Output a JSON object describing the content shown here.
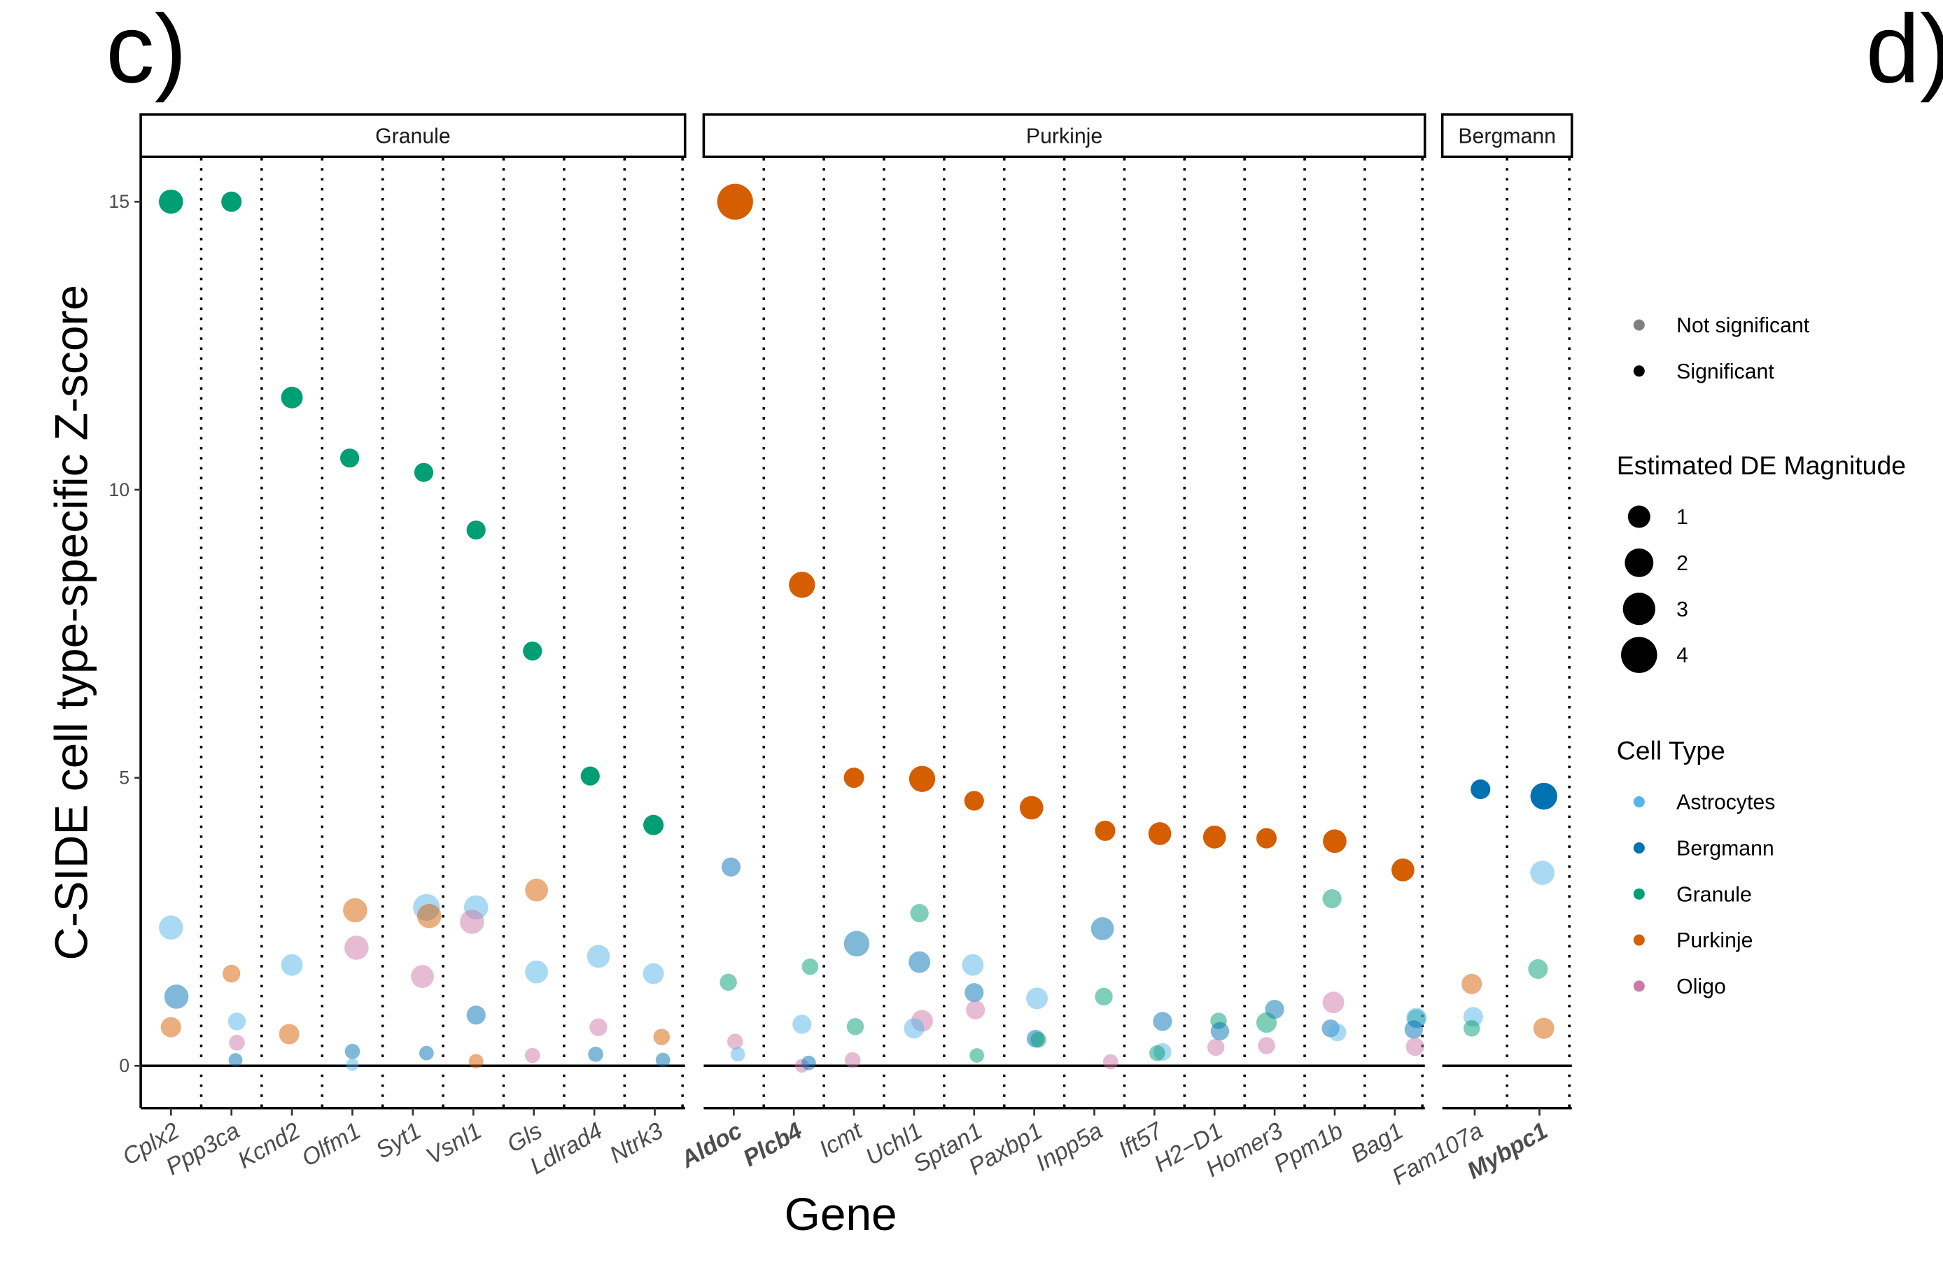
{
  "figure": {
    "panel_labels": [
      "c)",
      "d)"
    ]
  },
  "chart_data": {
    "type": "scatter",
    "title": "",
    "xlabel": "Gene",
    "ylabel": "C-SIDE cell type-specific Z-score",
    "ylim": [
      -0.75,
      15.75
    ],
    "yticks": [
      0,
      5,
      10,
      15
    ],
    "grid": "vertical dotted separators between genes; horizontal line at y=0",
    "facets": [
      {
        "name": "Granule",
        "genes": [
          "Cplx2",
          "Ppp3ca",
          "Kcnd2",
          "Olfm1",
          "Syt1",
          "Vsnl1",
          "Gls",
          "Ldlrad4",
          "Ntrk3"
        ],
        "bold_genes": []
      },
      {
        "name": "Purkinje",
        "genes": [
          "Aldoc",
          "Plcb4",
          "Icmt",
          "Uchl1",
          "Sptan1",
          "Paxbp1",
          "Inpp5a",
          "Ift57",
          "H2−D1",
          "Homer3",
          "Ppm1b",
          "Bag1"
        ],
        "bold_genes": [
          "Aldoc",
          "Plcb4"
        ]
      },
      {
        "name": "Bergmann",
        "genes": [
          "Fam107a",
          "Mybpc1"
        ],
        "bold_genes": [
          "Mybpc1"
        ]
      }
    ],
    "cell_types": [
      {
        "name": "Astrocytes",
        "color": "#56B4E9"
      },
      {
        "name": "Bergmann",
        "color": "#0072B2"
      },
      {
        "name": "Granule",
        "color": "#009E73"
      },
      {
        "name": "Purkinje",
        "color": "#D55E00"
      },
      {
        "name": "Oligo",
        "color": "#CC79A7"
      }
    ],
    "legend": {
      "position": "right",
      "significance": {
        "title": "",
        "items": [
          "Not significant",
          "Significant"
        ],
        "colors": [
          "#808080",
          "#000000"
        ]
      },
      "magnitude": {
        "title": "Estimated DE Magnitude",
        "values": [
          1,
          2,
          3,
          4
        ]
      },
      "cell_type": {
        "title": "Cell Type",
        "items": [
          "Astrocytes",
          "Bergmann",
          "Granule",
          "Purkinje",
          "Oligo"
        ]
      }
    },
    "points": [
      {
        "gene": "Cplx2",
        "cell": "Granule",
        "z": 15.0,
        "mag": 2.2,
        "sig": true,
        "offset": 0
      },
      {
        "gene": "Cplx2",
        "cell": "Astrocytes",
        "z": 2.4,
        "mag": 2.2,
        "sig": false,
        "offset": 0
      },
      {
        "gene": "Cplx2",
        "cell": "Bergmann",
        "z": 1.2,
        "mag": 2.2,
        "sig": false,
        "offset": 0.2
      },
      {
        "gene": "Cplx2",
        "cell": "Purkinje",
        "z": 0.67,
        "mag": 1.6,
        "sig": false,
        "offset": 0
      },
      {
        "gene": "Ppp3ca",
        "cell": "Granule",
        "z": 15.0,
        "mag": 1.6,
        "sig": true,
        "offset": 0
      },
      {
        "gene": "Ppp3ca",
        "cell": "Purkinje",
        "z": 1.6,
        "mag": 1.2,
        "sig": false,
        "offset": 0
      },
      {
        "gene": "Ppp3ca",
        "cell": "Astrocytes",
        "z": 0.77,
        "mag": 1.2,
        "sig": false,
        "offset": 0.2
      },
      {
        "gene": "Ppp3ca",
        "cell": "Oligo",
        "z": 0.4,
        "mag": 0.9,
        "sig": false,
        "offset": 0.2
      },
      {
        "gene": "Ppp3ca",
        "cell": "Bergmann",
        "z": 0.1,
        "mag": 0.6,
        "sig": false,
        "offset": 0.15
      },
      {
        "gene": "Kcnd2",
        "cell": "Granule",
        "z": 11.6,
        "mag": 1.8,
        "sig": true,
        "offset": 0
      },
      {
        "gene": "Kcnd2",
        "cell": "Astrocytes",
        "z": 1.75,
        "mag": 1.8,
        "sig": false,
        "offset": 0
      },
      {
        "gene": "Kcnd2",
        "cell": "Purkinje",
        "z": 0.55,
        "mag": 1.6,
        "sig": false,
        "offset": -0.1
      },
      {
        "gene": "Olfm1",
        "cell": "Granule",
        "z": 10.55,
        "mag": 1.4,
        "sig": true,
        "offset": -0.1
      },
      {
        "gene": "Olfm1",
        "cell": "Purkinje",
        "z": 2.7,
        "mag": 2.2,
        "sig": false,
        "offset": 0.1
      },
      {
        "gene": "Olfm1",
        "cell": "Oligo",
        "z": 2.05,
        "mag": 2.2,
        "sig": false,
        "offset": 0.15
      },
      {
        "gene": "Olfm1",
        "cell": "Bergmann",
        "z": 0.25,
        "mag": 0.8,
        "sig": false,
        "offset": 0
      },
      {
        "gene": "Olfm1",
        "cell": "Astrocytes",
        "z": 0.02,
        "mag": 0.4,
        "sig": false,
        "offset": 0
      },
      {
        "gene": "Syt1",
        "cell": "Granule",
        "z": 10.3,
        "mag": 1.4,
        "sig": true,
        "offset": 0.4
      },
      {
        "gene": "Syt1",
        "cell": "Astrocytes",
        "z": 2.75,
        "mag": 2.6,
        "sig": false,
        "offset": 0.5
      },
      {
        "gene": "Syt1",
        "cell": "Purkinje",
        "z": 2.6,
        "mag": 2.2,
        "sig": false,
        "offset": 0.6
      },
      {
        "gene": "Syt1",
        "cell": "Oligo",
        "z": 1.55,
        "mag": 2.0,
        "sig": false,
        "offset": 0.35
      },
      {
        "gene": "Syt1",
        "cell": "Bergmann",
        "z": 0.22,
        "mag": 0.7,
        "sig": false,
        "offset": 0.5
      },
      {
        "gene": "Vsnl1",
        "cell": "Granule",
        "z": 9.3,
        "mag": 1.4,
        "sig": true,
        "offset": 0.1
      },
      {
        "gene": "Vsnl1",
        "cell": "Astrocytes",
        "z": 2.75,
        "mag": 2.2,
        "sig": false,
        "offset": 0.1
      },
      {
        "gene": "Vsnl1",
        "cell": "Oligo",
        "z": 2.5,
        "mag": 2.2,
        "sig": false,
        "offset": -0.05
      },
      {
        "gene": "Vsnl1",
        "cell": "Bergmann",
        "z": 0.88,
        "mag": 1.4,
        "sig": false,
        "offset": 0.1
      },
      {
        "gene": "Vsnl1",
        "cell": "Purkinje",
        "z": 0.08,
        "mag": 0.7,
        "sig": false,
        "offset": 0.1
      },
      {
        "gene": "Gls",
        "cell": "Granule",
        "z": 7.2,
        "mag": 1.4,
        "sig": true,
        "offset": -0.05
      },
      {
        "gene": "Gls",
        "cell": "Purkinje",
        "z": 3.05,
        "mag": 2.0,
        "sig": false,
        "offset": 0.1
      },
      {
        "gene": "Gls",
        "cell": "Astrocytes",
        "z": 1.63,
        "mag": 2.0,
        "sig": false,
        "offset": 0.1
      },
      {
        "gene": "Gls",
        "cell": "Oligo",
        "z": 0.18,
        "mag": 0.8,
        "sig": false,
        "offset": -0.05
      },
      {
        "gene": "Ldlrad4",
        "cell": "Granule",
        "z": 5.03,
        "mag": 1.4,
        "sig": true,
        "offset": -0.15
      },
      {
        "gene": "Ldlrad4",
        "cell": "Astrocytes",
        "z": 1.9,
        "mag": 2.0,
        "sig": false,
        "offset": 0.15
      },
      {
        "gene": "Ldlrad4",
        "cell": "Oligo",
        "z": 0.67,
        "mag": 1.2,
        "sig": false,
        "offset": 0.15
      },
      {
        "gene": "Ldlrad4",
        "cell": "Bergmann",
        "z": 0.2,
        "mag": 0.8,
        "sig": false,
        "offset": 0.05
      },
      {
        "gene": "Ntrk3",
        "cell": "Granule",
        "z": 4.18,
        "mag": 1.6,
        "sig": true,
        "offset": -0.05
      },
      {
        "gene": "Ntrk3",
        "cell": "Astrocytes",
        "z": 1.6,
        "mag": 1.7,
        "sig": false,
        "offset": -0.05
      },
      {
        "gene": "Ntrk3",
        "cell": "Purkinje",
        "z": 0.5,
        "mag": 1.0,
        "sig": false,
        "offset": 0.25
      },
      {
        "gene": "Ntrk3",
        "cell": "Bergmann",
        "z": 0.1,
        "mag": 0.7,
        "sig": false,
        "offset": 0.3
      },
      {
        "gene": "Aldoc",
        "cell": "Purkinje",
        "z": 15.0,
        "mag": 4.0,
        "sig": true,
        "offset": 0.05
      },
      {
        "gene": "Aldoc",
        "cell": "Bergmann",
        "z": 3.45,
        "mag": 1.4,
        "sig": false,
        "offset": -0.1
      },
      {
        "gene": "Aldoc",
        "cell": "Granule",
        "z": 1.45,
        "mag": 1.1,
        "sig": false,
        "offset": -0.2
      },
      {
        "gene": "Aldoc",
        "cell": "Oligo",
        "z": 0.42,
        "mag": 0.9,
        "sig": false,
        "offset": 0.05
      },
      {
        "gene": "Aldoc",
        "cell": "Astrocytes",
        "z": 0.2,
        "mag": 0.7,
        "sig": false,
        "offset": 0.15
      },
      {
        "gene": "Plcb4",
        "cell": "Purkinje",
        "z": 8.35,
        "mag": 2.5,
        "sig": true,
        "offset": 0.3
      },
      {
        "gene": "Plcb4",
        "cell": "Granule",
        "z": 1.72,
        "mag": 1.0,
        "sig": false,
        "offset": 0.6
      },
      {
        "gene": "Plcb4",
        "cell": "Astrocytes",
        "z": 0.72,
        "mag": 1.4,
        "sig": false,
        "offset": 0.3
      },
      {
        "gene": "Plcb4",
        "cell": "Oligo",
        "z": 0.0,
        "mag": 0.6,
        "sig": false,
        "offset": 0.3
      },
      {
        "gene": "Plcb4",
        "cell": "Bergmann",
        "z": 0.05,
        "mag": 0.7,
        "sig": false,
        "offset": 0.55
      },
      {
        "gene": "Icmt",
        "cell": "Purkinje",
        "z": 5.0,
        "mag": 1.6,
        "sig": true,
        "offset": 0.0
      },
      {
        "gene": "Icmt",
        "cell": "Bergmann",
        "z": 2.12,
        "mag": 2.4,
        "sig": false,
        "offset": 0.1
      },
      {
        "gene": "Icmt",
        "cell": "Granule",
        "z": 0.68,
        "mag": 1.1,
        "sig": false,
        "offset": 0.05
      },
      {
        "gene": "Icmt",
        "cell": "Oligo",
        "z": 0.1,
        "mag": 0.9,
        "sig": false,
        "offset": -0.05
      },
      {
        "gene": "Uchl1",
        "cell": "Purkinje",
        "z": 4.98,
        "mag": 2.5,
        "sig": true,
        "offset": 0.3
      },
      {
        "gene": "Uchl1",
        "cell": "Granule",
        "z": 2.65,
        "mag": 1.3,
        "sig": false,
        "offset": 0.2
      },
      {
        "gene": "Uchl1",
        "cell": "Bergmann",
        "z": 1.8,
        "mag": 1.8,
        "sig": false,
        "offset": 0.2
      },
      {
        "gene": "Uchl1",
        "cell": "Oligo",
        "z": 0.78,
        "mag": 1.8,
        "sig": false,
        "offset": 0.3
      },
      {
        "gene": "Uchl1",
        "cell": "Astrocytes",
        "z": 0.65,
        "mag": 1.6,
        "sig": false,
        "offset": 0.0
      },
      {
        "gene": "Sptan1",
        "cell": "Purkinje",
        "z": 4.6,
        "mag": 1.5,
        "sig": true,
        "offset": 0.0
      },
      {
        "gene": "Sptan1",
        "cell": "Astrocytes",
        "z": 1.75,
        "mag": 1.8,
        "sig": false,
        "offset": -0.05
      },
      {
        "gene": "Sptan1",
        "cell": "Bergmann",
        "z": 1.27,
        "mag": 1.4,
        "sig": false,
        "offset": 0.0
      },
      {
        "gene": "Sptan1",
        "cell": "Oligo",
        "z": 0.97,
        "mag": 1.4,
        "sig": false,
        "offset": 0.05
      },
      {
        "gene": "Sptan1",
        "cell": "Granule",
        "z": 0.18,
        "mag": 0.7,
        "sig": false,
        "offset": 0.1
      },
      {
        "gene": "Paxbp1",
        "cell": "Purkinje",
        "z": 4.48,
        "mag": 2.1,
        "sig": true,
        "offset": -0.1
      },
      {
        "gene": "Paxbp1",
        "cell": "Astrocytes",
        "z": 1.17,
        "mag": 1.8,
        "sig": false,
        "offset": 0.1
      },
      {
        "gene": "Paxbp1",
        "cell": "Bergmann",
        "z": 0.47,
        "mag": 1.2,
        "sig": false,
        "offset": 0.05
      },
      {
        "gene": "Paxbp1",
        "cell": "Granule",
        "z": 0.45,
        "mag": 0.9,
        "sig": false,
        "offset": 0.15
      },
      {
        "gene": "Inpp5a",
        "cell": "Purkinje",
        "z": 4.08,
        "mag": 1.6,
        "sig": true,
        "offset": 0.4
      },
      {
        "gene": "Inpp5a",
        "cell": "Bergmann",
        "z": 2.38,
        "mag": 2.0,
        "sig": false,
        "offset": 0.3
      },
      {
        "gene": "Inpp5a",
        "cell": "Granule",
        "z": 1.2,
        "mag": 1.2,
        "sig": false,
        "offset": 0.35
      },
      {
        "gene": "Inpp5a",
        "cell": "Oligo",
        "z": 0.07,
        "mag": 0.8,
        "sig": false,
        "offset": 0.6
      },
      {
        "gene": "Ift57",
        "cell": "Purkinje",
        "z": 4.03,
        "mag": 2.0,
        "sig": true,
        "offset": 0.2
      },
      {
        "gene": "Ift57",
        "cell": "Bergmann",
        "z": 0.77,
        "mag": 1.4,
        "sig": false,
        "offset": 0.3
      },
      {
        "gene": "Ift57",
        "cell": "Astrocytes",
        "z": 0.24,
        "mag": 1.2,
        "sig": false,
        "offset": 0.3
      },
      {
        "gene": "Ift57",
        "cell": "Granule",
        "z": 0.22,
        "mag": 0.9,
        "sig": false,
        "offset": 0.1
      },
      {
        "gene": "H2−D1",
        "cell": "Purkinje",
        "z": 3.97,
        "mag": 2.0,
        "sig": true,
        "offset": 0.0
      },
      {
        "gene": "H2−D1",
        "cell": "Granule",
        "z": 0.78,
        "mag": 1.0,
        "sig": false,
        "offset": 0.15
      },
      {
        "gene": "H2−D1",
        "cell": "Bergmann",
        "z": 0.6,
        "mag": 1.3,
        "sig": false,
        "offset": 0.2
      },
      {
        "gene": "H2−D1",
        "cell": "Oligo",
        "z": 0.32,
        "mag": 1.1,
        "sig": false,
        "offset": 0.05
      },
      {
        "gene": "Homer3",
        "cell": "Purkinje",
        "z": 3.95,
        "mag": 1.6,
        "sig": true,
        "offset": -0.3
      },
      {
        "gene": "Homer3",
        "cell": "Bergmann",
        "z": 0.98,
        "mag": 1.4,
        "sig": false,
        "offset": 0.0
      },
      {
        "gene": "Homer3",
        "cell": "Granule",
        "z": 0.75,
        "mag": 1.6,
        "sig": false,
        "offset": -0.3
      },
      {
        "gene": "Homer3",
        "cell": "Oligo",
        "z": 0.35,
        "mag": 1.1,
        "sig": false,
        "offset": -0.3
      },
      {
        "gene": "Ppm1b",
        "cell": "Purkinje",
        "z": 3.9,
        "mag": 2.1,
        "sig": true,
        "offset": 0.0
      },
      {
        "gene": "Ppm1b",
        "cell": "Granule",
        "z": 2.9,
        "mag": 1.4,
        "sig": false,
        "offset": -0.1
      },
      {
        "gene": "Ppm1b",
        "cell": "Oligo",
        "z": 1.1,
        "mag": 1.8,
        "sig": false,
        "offset": -0.05
      },
      {
        "gene": "Ppm1b",
        "cell": "Bergmann",
        "z": 0.65,
        "mag": 1.2,
        "sig": false,
        "offset": -0.15
      },
      {
        "gene": "Ppm1b",
        "cell": "Astrocytes",
        "z": 0.58,
        "mag": 1.2,
        "sig": false,
        "offset": 0.1
      },
      {
        "gene": "Bag1",
        "cell": "Purkinje",
        "z": 3.4,
        "mag": 2.0,
        "sig": true,
        "offset": 0.3
      },
      {
        "gene": "Bag1",
        "cell": "Granule",
        "z": 0.82,
        "mag": 1.3,
        "sig": false,
        "offset": 0.8
      },
      {
        "gene": "Bag1",
        "cell": "Astrocytes",
        "z": 0.83,
        "mag": 1.6,
        "sig": false,
        "offset": 0.8
      },
      {
        "gene": "Bag1",
        "cell": "Bergmann",
        "z": 0.63,
        "mag": 1.3,
        "sig": false,
        "offset": 0.7
      },
      {
        "gene": "Bag1",
        "cell": "Oligo",
        "z": 0.33,
        "mag": 1.3,
        "sig": false,
        "offset": 0.75
      },
      {
        "gene": "Fam107a",
        "cell": "Bergmann",
        "z": 4.8,
        "mag": 1.5,
        "sig": true,
        "offset": 0.2
      },
      {
        "gene": "Fam107a",
        "cell": "Purkinje",
        "z": 1.42,
        "mag": 1.6,
        "sig": false,
        "offset": -0.1
      },
      {
        "gene": "Fam107a",
        "cell": "Astrocytes",
        "z": 0.85,
        "mag": 1.5,
        "sig": false,
        "offset": -0.05
      },
      {
        "gene": "Fam107a",
        "cell": "Granule",
        "z": 0.65,
        "mag": 1.0,
        "sig": false,
        "offset": -0.1
      },
      {
        "gene": "Mybpc1",
        "cell": "Bergmann",
        "z": 4.68,
        "mag": 2.6,
        "sig": true,
        "offset": 0.15
      },
      {
        "gene": "Mybpc1",
        "cell": "Astrocytes",
        "z": 3.35,
        "mag": 2.2,
        "sig": false,
        "offset": 0.1
      },
      {
        "gene": "Mybpc1",
        "cell": "Granule",
        "z": 1.68,
        "mag": 1.5,
        "sig": false,
        "offset": -0.05
      },
      {
        "gene": "Mybpc1",
        "cell": "Purkinje",
        "z": 0.65,
        "mag": 1.7,
        "sig": false,
        "offset": 0.15
      }
    ]
  }
}
